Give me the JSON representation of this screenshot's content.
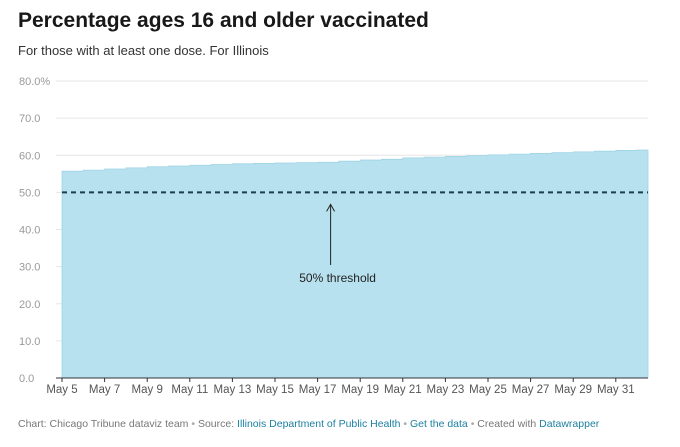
{
  "header": {
    "title": "Percentage ages 16 and older vaccinated",
    "subtitle": "For those with at least one dose. For Illinois"
  },
  "chart_data": {
    "type": "area",
    "title": "Percentage ages 16 and older vaccinated",
    "subtitle": "For those with at least one dose. For Illinois",
    "xlabel": "",
    "ylabel": "",
    "ylim": [
      0,
      80
    ],
    "yticks": [
      "0.0",
      "10.0",
      "20.0",
      "30.0",
      "40.0",
      "50.0",
      "60.0",
      "70.0",
      "80.0%"
    ],
    "xticks": [
      "May 5",
      "May 7",
      "May 9",
      "May 11",
      "May 13",
      "May 15",
      "May 17",
      "May 19",
      "May 21",
      "May 23",
      "May 25",
      "May 27",
      "May 29",
      "May 31"
    ],
    "x": [
      "May 5",
      "May 6",
      "May 7",
      "May 8",
      "May 9",
      "May 10",
      "May 11",
      "May 12",
      "May 13",
      "May 14",
      "May 15",
      "May 16",
      "May 17",
      "May 18",
      "May 19",
      "May 20",
      "May 21",
      "May 22",
      "May 23",
      "May 24",
      "May 25",
      "May 26",
      "May 27",
      "May 28",
      "May 29",
      "May 30",
      "May 31",
      "Jun 1"
    ],
    "series": [
      {
        "values": [
          55.7,
          56.0,
          56.3,
          56.6,
          56.9,
          57.1,
          57.3,
          57.5,
          57.7,
          57.8,
          57.9,
          58.0,
          58.1,
          58.4,
          58.7,
          58.9,
          59.3,
          59.5,
          59.7,
          59.9,
          60.1,
          60.3,
          60.5,
          60.7,
          60.9,
          61.1,
          61.3,
          61.4
        ]
      }
    ],
    "reference_line": {
      "value": 50,
      "style": "dashed"
    },
    "annotation": {
      "text": "50% threshold",
      "x": "May 17",
      "y": 50
    },
    "grid": true,
    "colors": {
      "area": "#b7e1ef",
      "area_edge": "#9fd3e5",
      "threshold": "#1c3d50",
      "grid": "#e6e6e6"
    }
  },
  "footer": {
    "credit": "Chart: Chicago Tribune dataviz team",
    "source_label": "Source:",
    "source_link": "Illinois Department of Public Health",
    "get_data": "Get the data",
    "created_with": "Created with",
    "tool": "Datawrapper"
  }
}
